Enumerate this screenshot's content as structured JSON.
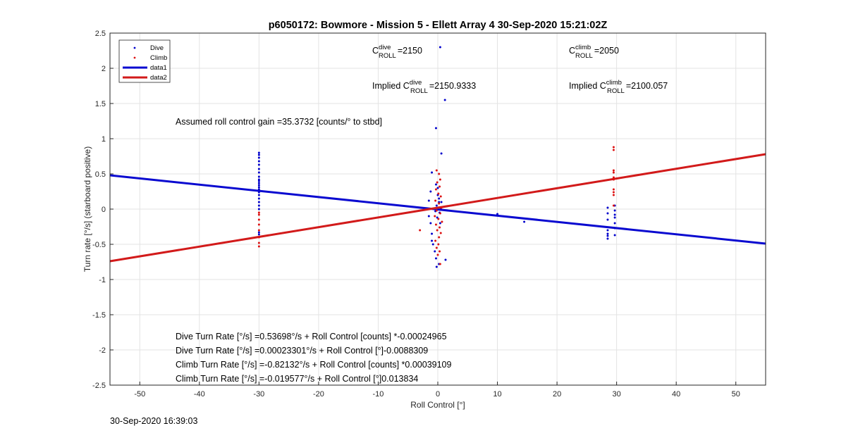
{
  "figure": {
    "timestamp": "30-Sep-2020 16:39:03"
  },
  "chart_data": {
    "type": "scatter",
    "title": "p6050172: Bowmore - Mission 5 - Ellett Array 4 30-Sep-2020 15:21:02Z",
    "xlabel": "Roll Control [°]",
    "ylabel": "Turn rate [°/s] (starboard positive)",
    "xlim": [
      -55,
      55
    ],
    "ylim": [
      -2.5,
      2.5
    ],
    "xticks": [
      -50,
      -40,
      -30,
      -20,
      -10,
      0,
      10,
      20,
      30,
      40,
      50
    ],
    "yticks": [
      -2.5,
      -2,
      -1.5,
      -1,
      -0.5,
      0,
      0.5,
      1,
      1.5,
      2,
      2.5
    ],
    "grid": true,
    "legend": {
      "location": "top-left",
      "entries": [
        "Dive",
        "Climb",
        "data1",
        "data2"
      ]
    },
    "colors": {
      "dive": "#0000cc",
      "climb": "#dd1111",
      "line_dive": "#0a0ad0",
      "line_climb": "#d21a1a"
    },
    "series": [
      {
        "name": "Dive",
        "marker": "dot",
        "points": [
          [
            -30,
            0.8
          ],
          [
            -30,
            0.77
          ],
          [
            -30,
            0.73
          ],
          [
            -30,
            0.68
          ],
          [
            -30,
            0.63
          ],
          [
            -30,
            0.57
          ],
          [
            -30,
            0.52
          ],
          [
            -30,
            0.46
          ],
          [
            -30,
            0.42
          ],
          [
            -30,
            0.4
          ],
          [
            -30,
            0.37
          ],
          [
            -30,
            0.34
          ],
          [
            -30,
            0.31
          ],
          [
            -30,
            0.28
          ],
          [
            -30,
            0.24
          ],
          [
            -30,
            0.2
          ],
          [
            -30,
            0.15
          ],
          [
            -30,
            0.1
          ],
          [
            -30,
            0.05
          ],
          [
            -30,
            0.0
          ],
          [
            -30,
            -0.33
          ],
          [
            -30,
            -0.36
          ],
          [
            -0.3,
            1.15
          ],
          [
            -1,
            0.52
          ],
          [
            -1.2,
            0.25
          ],
          [
            -1.5,
            0.12
          ],
          [
            -1.5,
            -0.1
          ],
          [
            -1.2,
            -0.2
          ],
          [
            -1,
            -0.35
          ],
          [
            -1,
            -0.45
          ],
          [
            -0.8,
            -0.5
          ],
          [
            -0.5,
            -0.6
          ],
          [
            -0.3,
            -0.7
          ],
          [
            -0.2,
            -0.82
          ],
          [
            0.2,
            -0.78
          ],
          [
            0,
            0.3
          ],
          [
            0,
            0.2
          ],
          [
            0.2,
            0.1
          ],
          [
            -0.2,
            0.05
          ],
          [
            0.3,
            -0.05
          ],
          [
            -0.1,
            -0.12
          ],
          [
            0.4,
            -0.2
          ],
          [
            0.5,
            0.0
          ],
          [
            0.6,
            0.1
          ],
          [
            -0.4,
            -0.03
          ],
          [
            0.2,
            0.15
          ],
          [
            -0.3,
            0.35
          ],
          [
            0.4,
            2.3
          ],
          [
            1.2,
            1.55
          ],
          [
            0.6,
            0.79
          ],
          [
            1.3,
            -0.72
          ],
          [
            10,
            -0.07
          ],
          [
            14.5,
            -0.18
          ],
          [
            28.5,
            0.02
          ],
          [
            28.5,
            -0.06
          ],
          [
            28.5,
            -0.15
          ],
          [
            28.5,
            -0.3
          ],
          [
            28.5,
            -0.35
          ],
          [
            28.5,
            -0.38
          ],
          [
            28.5,
            -0.42
          ],
          [
            29.7,
            0.05
          ],
          [
            29.7,
            -0.02
          ],
          [
            29.7,
            -0.08
          ],
          [
            29.7,
            -0.12
          ],
          [
            29.7,
            -0.2
          ],
          [
            29.7,
            -0.27
          ],
          [
            29.7,
            -0.37
          ]
        ]
      },
      {
        "name": "Climb",
        "marker": "dot",
        "points": [
          [
            -30,
            -0.05
          ],
          [
            -30,
            -0.08
          ],
          [
            -30,
            -0.15
          ],
          [
            -30,
            -0.22
          ],
          [
            -30,
            -0.3
          ],
          [
            -30,
            -0.4
          ],
          [
            -30,
            -0.48
          ],
          [
            -30,
            -0.53
          ],
          [
            -0.2,
            0.55
          ],
          [
            0.2,
            0.5
          ],
          [
            0.4,
            0.42
          ],
          [
            -0.1,
            0.38
          ],
          [
            0.3,
            0.32
          ],
          [
            -0.3,
            0.28
          ],
          [
            0.1,
            0.22
          ],
          [
            0.5,
            0.18
          ],
          [
            -0.4,
            0.12
          ],
          [
            0.2,
            0.08
          ],
          [
            0.6,
            0.02
          ],
          [
            -0.2,
            -0.02
          ],
          [
            0.4,
            -0.06
          ],
          [
            -0.5,
            -0.1
          ],
          [
            0.1,
            -0.14
          ],
          [
            0.7,
            -0.18
          ],
          [
            -0.3,
            -0.22
          ],
          [
            0.3,
            -0.26
          ],
          [
            -0.1,
            -0.3
          ],
          [
            0.5,
            -0.34
          ],
          [
            0.2,
            -0.4
          ],
          [
            -0.4,
            -0.45
          ],
          [
            0.1,
            -0.5
          ],
          [
            -0.2,
            -0.55
          ],
          [
            0.3,
            -0.6
          ],
          [
            0,
            -0.65
          ],
          [
            0.4,
            -0.78
          ],
          [
            -3,
            -0.3
          ],
          [
            29.5,
            0.88
          ],
          [
            29.5,
            0.84
          ],
          [
            29.5,
            0.55
          ],
          [
            29.5,
            0.52
          ],
          [
            29.5,
            0.45
          ],
          [
            29.5,
            0.42
          ],
          [
            29.5,
            0.28
          ],
          [
            29.5,
            0.24
          ],
          [
            29.5,
            0.2
          ],
          [
            29.5,
            0.05
          ]
        ]
      },
      {
        "name": "data1",
        "type": "line",
        "x": [
          -55,
          55
        ],
        "y": [
          0.48,
          -0.49
        ]
      },
      {
        "name": "data2",
        "type": "line",
        "x": [
          -55,
          55
        ],
        "y": [
          -0.74,
          0.78
        ]
      }
    ],
    "annotations": {
      "c_dive": {
        "base": "C",
        "sup": "dive",
        "sub": "ROLL",
        "rest": "=2150"
      },
      "c_climb": {
        "base": "C",
        "sup": "climb",
        "sub": "ROLL",
        "rest": "=2050"
      },
      "implied_dive": {
        "prefix": "Implied C",
        "sup": "dive",
        "sub": "ROLL",
        "rest": "=2150.9333"
      },
      "implied_climb": {
        "prefix": "Implied C",
        "sup": "climb",
        "sub": "ROLL",
        "rest": "=2100.057"
      },
      "gain": "Assumed roll control gain =35.3732 [counts/° to stbd]",
      "equations": [
        "Dive Turn Rate [°/s] =0.53698°/s + Roll Control [counts] *-0.00024965",
        "Dive Turn Rate [°/s] =0.00023301°/s + Roll Control [°]-0.0088309",
        "Climb Turn Rate [°/s] =-0.82132°/s + Roll Control [counts] *0.00039109",
        "Climb Turn Rate [°/s] =-0.019577°/s + Roll Control [°]0.013834"
      ]
    }
  }
}
